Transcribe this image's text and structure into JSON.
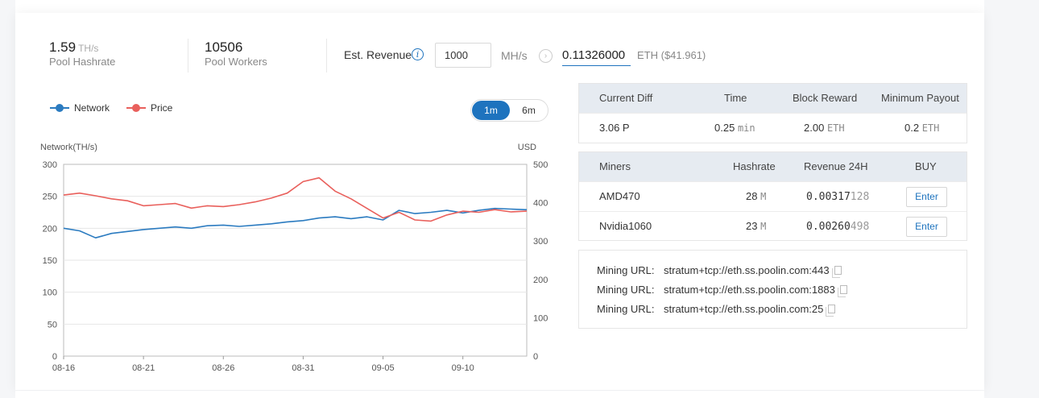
{
  "stats": {
    "pool_hashrate": {
      "value": "1.59",
      "unit": "TH/s",
      "label": "Pool Hashrate"
    },
    "pool_workers": {
      "value": "10506",
      "label": "Pool Workers"
    }
  },
  "calculator": {
    "label": "Est. Revenue",
    "input_value": "1000",
    "input_unit": "MH/s",
    "result_eth": "0.11326000",
    "result_usd": "ETH ($41.961)"
  },
  "legend": {
    "network": "Network",
    "price": "Price"
  },
  "range_toggle": {
    "options": [
      "1m",
      "6m"
    ],
    "selected": "1m"
  },
  "colors": {
    "network": "#2b7bc0",
    "price": "#e9605c",
    "accent": "#1e73be"
  },
  "chart_data": {
    "type": "line",
    "left_axis_label": "Network(TH/s)",
    "right_axis_label": "USD",
    "x_labels": [
      "08-16",
      "08-21",
      "08-26",
      "08-31",
      "09-05",
      "09-10"
    ],
    "y_left_ticks": [
      "0",
      "50",
      "100",
      "150",
      "200",
      "250",
      "300"
    ],
    "y_right_ticks": [
      "0",
      "100",
      "200",
      "300",
      "400",
      "500"
    ],
    "ylim_left": [
      0,
      300
    ],
    "ylim_right": [
      0,
      500
    ],
    "grid": true,
    "series": [
      {
        "name": "Network",
        "axis": "left",
        "x": [
          0,
          1,
          2,
          3,
          4,
          5,
          6,
          7,
          8,
          9,
          10,
          11,
          12,
          13,
          14,
          15,
          16,
          17,
          18,
          19,
          20,
          21,
          22,
          23,
          24,
          25,
          26,
          27,
          28,
          29
        ],
        "values": [
          200,
          196,
          185,
          192,
          195,
          198,
          200,
          202,
          200,
          204,
          205,
          203,
          205,
          207,
          210,
          212,
          216,
          218,
          215,
          218,
          213,
          228,
          223,
          225,
          228,
          224,
          228,
          231,
          230,
          229
        ]
      },
      {
        "name": "Price",
        "axis": "right",
        "x": [
          0,
          1,
          2,
          3,
          4,
          5,
          6,
          7,
          8,
          9,
          10,
          11,
          12,
          13,
          14,
          15,
          16,
          17,
          18,
          19,
          20,
          21,
          22,
          23,
          24,
          25,
          26,
          27,
          28,
          29
        ],
        "values": [
          420,
          425,
          418,
          410,
          405,
          392,
          395,
          398,
          386,
          392,
          390,
          395,
          402,
          412,
          425,
          455,
          465,
          430,
          410,
          385,
          360,
          375,
          355,
          352,
          368,
          378,
          375,
          382,
          376,
          378
        ]
      }
    ]
  },
  "diff_table": {
    "headers": [
      "Current Diff",
      "Time",
      "Block Reward",
      "Minimum Payout"
    ],
    "row": {
      "diff": "3.06 P",
      "time": "0.25",
      "time_unit": "min",
      "reward": "2.00",
      "reward_unit": "ETH",
      "payout": "0.2",
      "payout_unit": "ETH"
    }
  },
  "miners_table": {
    "headers": [
      "Miners",
      "Hashrate",
      "Revenue 24H",
      "BUY"
    ],
    "rows": [
      {
        "name": "AMD470",
        "hashrate": "28",
        "unit": "M",
        "rev_main": "0.00317",
        "rev_tail": "128",
        "buy": "Enter"
      },
      {
        "name": "Nvidia1060",
        "hashrate": "23",
        "unit": "M",
        "rev_main": "0.00260",
        "rev_tail": "498",
        "buy": "Enter"
      }
    ]
  },
  "mining_urls": {
    "label": "Mining URL:",
    "items": [
      "stratum+tcp://eth.ss.poolin.com:443",
      "stratum+tcp://eth.ss.poolin.com:1883",
      "stratum+tcp://eth.ss.poolin.com:25"
    ]
  }
}
